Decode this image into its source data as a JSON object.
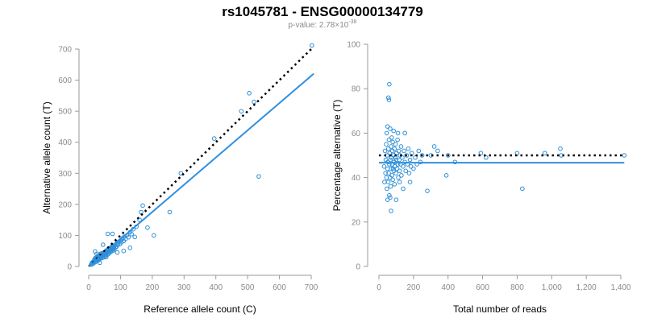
{
  "title": "rs1045781 - ENSG00000134779",
  "subtitle": {
    "prefix": "p-value: 2.78×10",
    "exponent": "-38"
  },
  "colors": {
    "points": "#2f8fd6",
    "fit_line": "#2f8fe0",
    "reference_line": "#000000",
    "axis": "#9a9a9a",
    "tick_text": "#8a8a8a"
  },
  "chart_data": [
    {
      "type": "scatter",
      "xlabel": "Reference allele count (C)",
      "ylabel": "Alternative allele count (T)",
      "xlim": [
        0,
        700
      ],
      "ylim": [
        0,
        700
      ],
      "xticks": [
        0,
        100,
        200,
        300,
        400,
        500,
        600,
        700
      ],
      "xtick_labels": [
        "0",
        "100",
        "200",
        "300",
        "400",
        "500",
        "600",
        "700"
      ],
      "yticks": [
        0,
        100,
        200,
        300,
        400,
        500,
        600,
        700
      ],
      "ytick_labels": [
        "0",
        "100",
        "200",
        "300",
        "400",
        "500",
        "600",
        "700"
      ],
      "grid": false,
      "points": [
        [
          8,
          6
        ],
        [
          10,
          12
        ],
        [
          12,
          8
        ],
        [
          14,
          15
        ],
        [
          15,
          10
        ],
        [
          16,
          14
        ],
        [
          18,
          16
        ],
        [
          18,
          22
        ],
        [
          20,
          18
        ],
        [
          20,
          26
        ],
        [
          21,
          14
        ],
        [
          22,
          20
        ],
        [
          23,
          28
        ],
        [
          24,
          18
        ],
        [
          25,
          24
        ],
        [
          26,
          30
        ],
        [
          27,
          22
        ],
        [
          28,
          26
        ],
        [
          29,
          34
        ],
        [
          30,
          22
        ],
        [
          30,
          28
        ],
        [
          31,
          20
        ],
        [
          32,
          32
        ],
        [
          33,
          26
        ],
        [
          34,
          36
        ],
        [
          35,
          24
        ],
        [
          35,
          30
        ],
        [
          36,
          40
        ],
        [
          37,
          28
        ],
        [
          38,
          34
        ],
        [
          39,
          30
        ],
        [
          40,
          42
        ],
        [
          41,
          32
        ],
        [
          42,
          36
        ],
        [
          43,
          28
        ],
        [
          44,
          40
        ],
        [
          45,
          34
        ],
        [
          46,
          44
        ],
        [
          47,
          36
        ],
        [
          48,
          30
        ],
        [
          49,
          40
        ],
        [
          50,
          46
        ],
        [
          51,
          38
        ],
        [
          52,
          44
        ],
        [
          53,
          34
        ],
        [
          54,
          48
        ],
        [
          55,
          40
        ],
        [
          56,
          52
        ],
        [
          57,
          44
        ],
        [
          58,
          38
        ],
        [
          59,
          50
        ],
        [
          60,
          46
        ],
        [
          61,
          54
        ],
        [
          62,
          40
        ],
        [
          63,
          48
        ],
        [
          64,
          58
        ],
        [
          65,
          50
        ],
        [
          66,
          44
        ],
        [
          67,
          56
        ],
        [
          68,
          52
        ],
        [
          69,
          60
        ],
        [
          70,
          48
        ],
        [
          71,
          58
        ],
        [
          72,
          54
        ],
        [
          73,
          64
        ],
        [
          74,
          50
        ],
        [
          75,
          60
        ],
        [
          76,
          56
        ],
        [
          77,
          66
        ],
        [
          78,
          52
        ],
        [
          79,
          62
        ],
        [
          80,
          58
        ],
        [
          82,
          68
        ],
        [
          84,
          60
        ],
        [
          86,
          72
        ],
        [
          88,
          64
        ],
        [
          90,
          76
        ],
        [
          92,
          70
        ],
        [
          95,
          80
        ],
        [
          98,
          72
        ],
        [
          100,
          84
        ],
        [
          103,
          78
        ],
        [
          106,
          90
        ],
        [
          110,
          82
        ],
        [
          112,
          96
        ],
        [
          116,
          88
        ],
        [
          120,
          100
        ],
        [
          125,
          94
        ],
        [
          130,
          110
        ],
        [
          135,
          104
        ],
        [
          140,
          120
        ],
        [
          150,
          128
        ],
        [
          160,
          150
        ],
        [
          165,
          175
        ],
        [
          170,
          196
        ],
        [
          185,
          125
        ],
        [
          205,
          100
        ],
        [
          255,
          175
        ],
        [
          290,
          300
        ],
        [
          395,
          412
        ],
        [
          480,
          500
        ],
        [
          505,
          558
        ],
        [
          520,
          530
        ],
        [
          535,
          290
        ],
        [
          702,
          712
        ],
        [
          60,
          105
        ],
        [
          75,
          105
        ],
        [
          110,
          50
        ],
        [
          20,
          48
        ],
        [
          45,
          70
        ],
        [
          55,
          30
        ],
        [
          35,
          12
        ],
        [
          90,
          45
        ],
        [
          25,
          40
        ],
        [
          130,
          60
        ],
        [
          145,
          95
        ]
      ],
      "series": [
        {
          "style": "dotted",
          "slope": 1,
          "intercept": 0,
          "x_range": [
            0,
            700
          ]
        },
        {
          "style": "solid",
          "slope": 0.877,
          "intercept": 0,
          "x_range": [
            0,
            708
          ]
        }
      ]
    },
    {
      "type": "scatter",
      "xlabel": "Total number of reads",
      "ylabel": "Percentage alternative (T)",
      "xlim": [
        0,
        1400
      ],
      "ylim": [
        0,
        100
      ],
      "xticks": [
        0,
        200,
        400,
        600,
        800,
        1000,
        1200,
        1400
      ],
      "xtick_labels": [
        "0",
        "200",
        "400",
        "600",
        "800",
        "1,000",
        "1,200",
        "1,400"
      ],
      "yticks": [
        0,
        20,
        40,
        60,
        80,
        100
      ],
      "ytick_labels": [
        "0",
        "20",
        "40",
        "60",
        "80",
        "100"
      ],
      "grid": false,
      "points": [
        [
          30,
          45
        ],
        [
          32,
          38
        ],
        [
          35,
          52
        ],
        [
          38,
          42
        ],
        [
          40,
          48
        ],
        [
          42,
          55
        ],
        [
          44,
          40
        ],
        [
          45,
          60
        ],
        [
          46,
          35
        ],
        [
          48,
          50
        ],
        [
          50,
          44
        ],
        [
          50,
          63
        ],
        [
          52,
          47
        ],
        [
          54,
          38
        ],
        [
          55,
          53
        ],
        [
          56,
          42
        ],
        [
          58,
          57
        ],
        [
          60,
          46
        ],
        [
          60,
          32
        ],
        [
          62,
          51
        ],
        [
          64,
          40
        ],
        [
          65,
          62
        ],
        [
          66,
          48
        ],
        [
          68,
          36
        ],
        [
          70,
          54
        ],
        [
          70,
          44
        ],
        [
          72,
          49
        ],
        [
          74,
          58
        ],
        [
          75,
          41
        ],
        [
          76,
          46
        ],
        [
          78,
          52
        ],
        [
          80,
          39
        ],
        [
          80,
          56
        ],
        [
          82,
          44
        ],
        [
          84,
          50
        ],
        [
          85,
          61
        ],
        [
          86,
          43
        ],
        [
          88,
          47
        ],
        [
          90,
          53
        ],
        [
          90,
          37
        ],
        [
          92,
          45
        ],
        [
          95,
          49
        ],
        [
          96,
          55
        ],
        [
          98,
          42
        ],
        [
          100,
          48
        ],
        [
          102,
          51
        ],
        [
          105,
          44
        ],
        [
          108,
          57
        ],
        [
          110,
          46
        ],
        [
          112,
          40
        ],
        [
          115,
          52
        ],
        [
          118,
          48
        ],
        [
          120,
          43
        ],
        [
          122,
          50
        ],
        [
          125,
          46
        ],
        [
          128,
          54
        ],
        [
          130,
          41
        ],
        [
          135,
          49
        ],
        [
          140,
          45
        ],
        [
          145,
          52
        ],
        [
          150,
          47
        ],
        [
          155,
          43
        ],
        [
          160,
          50
        ],
        [
          165,
          46
        ],
        [
          170,
          53
        ],
        [
          175,
          42
        ],
        [
          180,
          48
        ],
        [
          185,
          45
        ],
        [
          190,
          51
        ],
        [
          200,
          44
        ],
        [
          210,
          49
        ],
        [
          220,
          46
        ],
        [
          230,
          52
        ],
        [
          240,
          47
        ],
        [
          250,
          50
        ],
        [
          60,
          82
        ],
        [
          55,
          76
        ],
        [
          58,
          75
        ],
        [
          70,
          25
        ],
        [
          50,
          30
        ],
        [
          65,
          31
        ],
        [
          110,
          60
        ],
        [
          120,
          38
        ],
        [
          140,
          35
        ],
        [
          150,
          60
        ],
        [
          100,
          30
        ],
        [
          180,
          38
        ],
        [
          280,
          34
        ],
        [
          300,
          50
        ],
        [
          320,
          54
        ],
        [
          340,
          52
        ],
        [
          390,
          41
        ],
        [
          400,
          50
        ],
        [
          440,
          47
        ],
        [
          590,
          51
        ],
        [
          620,
          49
        ],
        [
          800,
          51
        ],
        [
          830,
          35
        ],
        [
          960,
          51
        ],
        [
          1050,
          53
        ],
        [
          1055,
          50
        ],
        [
          1420,
          50
        ]
      ],
      "series": [
        {
          "style": "dotted",
          "slope": 0,
          "intercept": 50,
          "x_range": [
            0,
            1420
          ]
        },
        {
          "style": "solid",
          "slope": 0,
          "intercept": 46.7,
          "x_range": [
            0,
            1420
          ]
        }
      ]
    }
  ]
}
